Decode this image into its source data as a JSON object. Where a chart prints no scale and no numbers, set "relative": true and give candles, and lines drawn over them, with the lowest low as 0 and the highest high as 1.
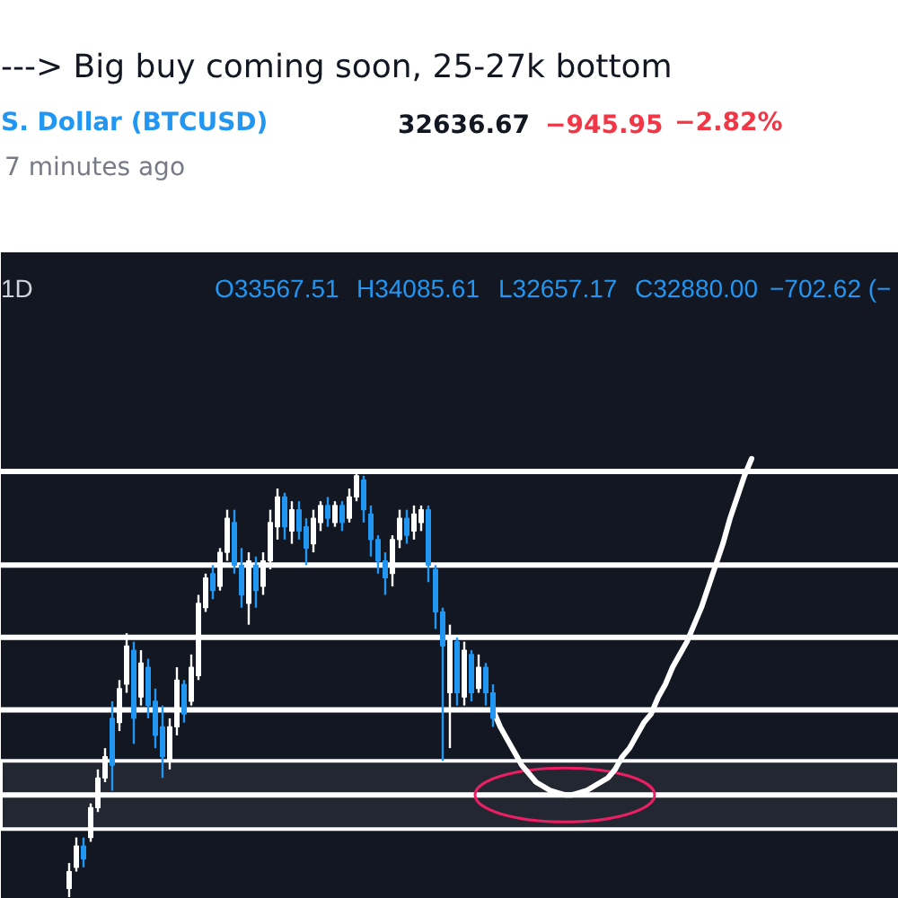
{
  "chart_data": {
    "type": "candlestick",
    "title": "---> Big buy coming soon, 25-27k bottom",
    "annotations": [
      "S. Dollar (BTCUSD)",
      "32636.67",
      "−945.95",
      "−2.82%",
      "7 minutes ago",
      "1D",
      "O33567.51",
      "H34085.61",
      "L32657.17",
      "C32880.00",
      "−702.62 (−"
    ],
    "relative": true,
    "tick_labels": false,
    "categories": [
      null,
      null,
      null,
      null,
      null,
      null,
      null,
      null,
      null,
      null,
      null,
      null,
      null,
      null,
      null,
      null,
      null,
      null,
      null,
      null,
      null,
      null,
      null,
      null,
      null,
      null,
      null,
      null,
      null,
      null,
      null,
      null,
      null,
      null,
      null,
      null,
      null,
      null,
      null,
      null,
      null,
      null,
      null,
      null,
      null,
      null,
      null,
      null,
      null,
      null,
      null,
      null,
      null,
      null,
      null,
      null,
      null,
      null,
      null,
      null,
      null,
      null,
      null,
      null,
      null,
      null,
      null,
      null,
      null,
      null,
      null,
      null,
      null,
      null,
      null,
      null,
      null,
      null,
      null,
      null,
      null,
      null,
      null,
      null,
      null,
      null,
      null,
      null,
      null,
      null,
      null,
      null,
      null,
      null,
      null,
      null,
      null,
      null,
      null,
      null,
      null,
      null,
      null,
      null,
      null,
      null,
      null,
      null,
      null,
      null,
      null,
      null,
      null,
      null,
      null,
      null,
      null,
      null,
      null,
      null,
      null,
      null,
      null,
      null,
      null
    ],
    "ohlc": [
      null,
      null,
      null,
      null,
      null,
      null,
      null,
      null,
      null,
      [
        0.02,
        0.08,
        0.0,
        0.06
      ],
      [
        0.07,
        0.14,
        0.06,
        0.12
      ],
      [
        0.12,
        0.14,
        0.07,
        0.09
      ],
      [
        0.14,
        0.22,
        0.13,
        0.21
      ],
      [
        0.21,
        0.3,
        0.2,
        0.28
      ],
      [
        0.28,
        0.35,
        0.27,
        0.33
      ],
      [
        0.42,
        0.46,
        0.25,
        0.31
      ],
      [
        0.41,
        0.51,
        0.39,
        0.49
      ],
      [
        0.5,
        0.62,
        0.48,
        0.59
      ],
      [
        0.58,
        0.6,
        0.36,
        0.42
      ],
      [
        0.47,
        0.58,
        0.45,
        0.55
      ],
      [
        0.54,
        0.56,
        0.42,
        0.45
      ],
      [
        0.46,
        0.49,
        0.35,
        0.38
      ],
      [
        0.4,
        0.45,
        0.28,
        0.33
      ],
      [
        0.32,
        0.42,
        0.3,
        0.4
      ],
      [
        0.4,
        0.54,
        0.38,
        0.51
      ],
      [
        0.5,
        0.51,
        0.41,
        0.43
      ],
      [
        0.46,
        0.57,
        0.45,
        0.54
      ],
      [
        0.52,
        0.71,
        0.51,
        0.69
      ],
      [
        0.68,
        0.76,
        0.67,
        0.75
      ],
      [
        0.76,
        0.78,
        0.7,
        0.72
      ],
      [
        0.73,
        0.82,
        0.72,
        0.81
      ],
      [
        0.81,
        0.91,
        0.79,
        0.89
      ],
      [
        0.88,
        0.91,
        0.76,
        0.78
      ],
      [
        0.78,
        0.82,
        0.68,
        0.71
      ],
      [
        0.69,
        0.81,
        0.64,
        0.79
      ],
      [
        0.78,
        0.8,
        0.68,
        0.72
      ],
      [
        0.73,
        0.81,
        0.71,
        0.79
      ],
      [
        0.79,
        0.91,
        0.77,
        0.88
      ],
      [
        0.87,
        0.96,
        0.84,
        0.94
      ],
      [
        0.94,
        0.95,
        0.84,
        0.87
      ],
      [
        0.86,
        0.93,
        0.83,
        0.91
      ],
      [
        0.91,
        0.93,
        0.84,
        0.86
      ],
      [
        0.87,
        0.89,
        0.78,
        0.82
      ],
      [
        0.83,
        0.91,
        0.81,
        0.89
      ],
      [
        0.88,
        0.93,
        0.86,
        0.92
      ],
      [
        0.92,
        0.94,
        0.87,
        0.89
      ],
      [
        0.88,
        0.93,
        0.87,
        0.92
      ],
      [
        0.92,
        0.93,
        0.86,
        0.88
      ],
      [
        0.89,
        0.96,
        0.88,
        0.94
      ],
      [
        0.94,
        1.0,
        0.93,
        0.99
      ],
      [
        0.98,
        0.99,
        0.88,
        0.91
      ],
      [
        0.9,
        0.92,
        0.8,
        0.84
      ],
      [
        0.84,
        0.85,
        0.76,
        0.79
      ],
      [
        0.79,
        0.81,
        0.71,
        0.75
      ],
      [
        0.76,
        0.85,
        0.73,
        0.84
      ],
      [
        0.84,
        0.91,
        0.82,
        0.89
      ],
      [
        0.89,
        0.91,
        0.83,
        0.85
      ],
      [
        0.86,
        0.92,
        0.84,
        0.9
      ],
      [
        0.88,
        0.92,
        0.86,
        0.91
      ],
      [
        0.91,
        0.92,
        0.74,
        0.78
      ],
      [
        0.77,
        0.78,
        0.63,
        0.67
      ],
      [
        0.67,
        0.68,
        0.32,
        0.59
      ],
      [
        0.48,
        0.64,
        0.35,
        0.61
      ],
      [
        0.6,
        0.61,
        0.45,
        0.48
      ],
      [
        0.47,
        0.6,
        0.45,
        0.58
      ],
      [
        0.57,
        0.58,
        0.46,
        0.48
      ],
      [
        0.49,
        0.57,
        0.48,
        0.54
      ],
      [
        0.54,
        0.55,
        0.45,
        0.48
      ],
      [
        0.48,
        0.5,
        0.4,
        0.42
      ],
      null,
      null,
      null,
      null,
      null,
      null,
      null,
      null,
      null,
      null,
      null,
      null,
      null,
      null,
      null,
      null,
      null,
      null,
      null,
      null,
      null,
      null,
      null,
      null,
      null,
      null,
      null,
      null,
      null,
      null,
      null,
      null,
      null,
      null,
      null,
      null,
      null,
      null,
      null,
      null,
      null,
      null,
      null,
      null,
      null,
      null,
      null,
      null,
      null,
      null,
      null,
      null,
      null,
      null,
      null,
      null
    ],
    "colors": [
      null,
      null,
      null,
      null,
      null,
      null,
      null,
      null,
      null,
      "#ffffff",
      "#ffffff",
      "#2196f3",
      "#ffffff",
      "#ffffff",
      "#ffffff",
      "#2196f3",
      "#ffffff",
      "#ffffff",
      "#2196f3",
      "#ffffff",
      "#2196f3",
      "#2196f3",
      "#2196f3",
      "#ffffff",
      "#ffffff",
      "#2196f3",
      "#ffffff",
      "#ffffff",
      "#ffffff",
      "#2196f3",
      "#ffffff",
      "#ffffff",
      "#2196f3",
      "#2196f3",
      "#ffffff",
      "#2196f3",
      "#ffffff",
      "#ffffff",
      "#ffffff",
      "#2196f3",
      "#ffffff",
      "#2196f3",
      "#2196f3",
      "#ffffff",
      "#ffffff",
      "#2196f3",
      "#ffffff",
      "#2196f3",
      "#ffffff",
      "#ffffff",
      "#2196f3",
      "#2196f3",
      "#2196f3",
      "#2196f3",
      "#ffffff",
      "#ffffff",
      "#2196f3",
      "#ffffff",
      "#ffffff",
      "#2196f3",
      "#2196f3",
      "#2196f3",
      "#ffffff",
      "#2196f3",
      "#ffffff",
      "#2196f3",
      "#ffffff",
      "#2196f3",
      "#2196f3",
      null,
      null,
      null,
      null,
      null,
      null,
      null,
      null,
      null,
      null,
      null,
      null,
      null,
      null,
      null,
      null,
      null,
      null,
      null,
      null,
      null,
      null,
      null,
      null,
      null,
      null,
      null,
      null,
      null,
      null,
      null,
      null,
      null,
      null,
      null,
      null,
      null,
      null,
      null,
      null,
      null,
      null,
      null,
      null,
      null,
      null,
      null,
      null,
      null,
      null,
      null,
      null,
      null,
      null,
      null,
      null
    ],
    "series": [
      {
        "type": "line",
        "color": "#ffffff",
        "values": [
          null,
          null,
          null,
          null,
          null,
          null,
          null,
          null,
          null,
          null,
          null,
          null,
          null,
          null,
          null,
          null,
          null,
          null,
          null,
          null,
          null,
          null,
          null,
          null,
          null,
          null,
          null,
          null,
          null,
          null,
          null,
          null,
          null,
          null,
          null,
          null,
          null,
          null,
          null,
          null,
          null,
          null,
          null,
          null,
          null,
          null,
          null,
          null,
          null,
          null,
          null,
          null,
          null,
          null,
          null,
          null,
          null,
          null,
          null,
          null,
          null,
          null,
          null,
          null,
          null,
          null,
          null,
          null,
          0.44,
          0.4,
          0.37,
          0.34,
          0.31,
          0.29,
          0.27,
          0.26,
          0.25,
          0.245,
          0.24,
          0.24,
          0.245,
          0.25,
          0.26,
          0.27,
          0.28,
          0.3,
          0.33,
          0.35,
          0.38,
          0.41,
          0.43,
          0.47,
          0.5,
          0.54,
          0.57,
          0.6,
          0.64,
          0.68,
          0.73,
          0.78,
          0.83,
          0.89,
          0.94,
          0.99,
          1.03,
          null,
          null,
          null,
          null,
          null,
          null,
          null,
          null,
          null,
          null,
          null,
          null,
          null,
          null,
          null,
          null,
          null,
          null,
          null,
          null
        ]
      }
    ],
    "ref_lines": [
      {
        "axis": "y",
        "value": 1.0,
        "color": "#ffffff"
      },
      {
        "axis": "y",
        "value": 0.78,
        "color": "#ffffff"
      },
      {
        "axis": "y",
        "value": 0.61,
        "color": "#ffffff"
      },
      {
        "axis": "y",
        "value": 0.44,
        "color": "#ffffff"
      },
      {
        "axis": "y",
        "value": 0.24,
        "color": "#ffffff"
      }
    ],
    "bands": [
      {
        "axis": "y",
        "from": 0.16,
        "to": 0.32,
        "color": "#ffffff"
      }
    ]
  }
}
